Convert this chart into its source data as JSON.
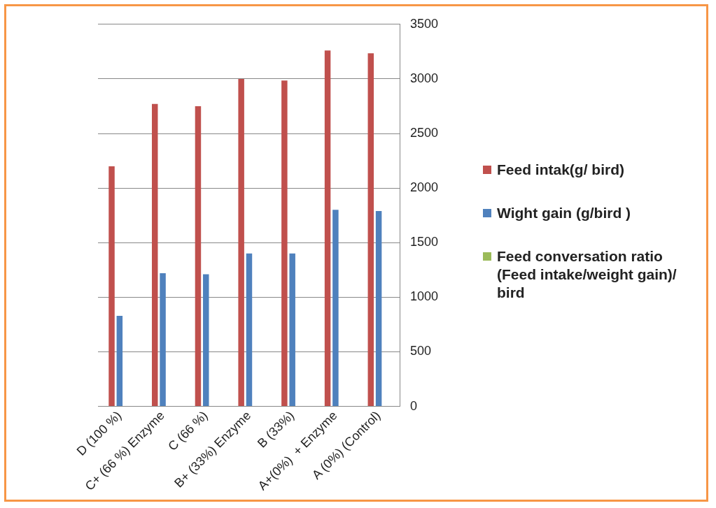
{
  "chart_data": {
    "type": "bar",
    "categories": [
      "D (100 %)",
      "C+ (66 %) Enzyme",
      "C (66 %)",
      "B+ (33%) Enzyme",
      "B (33%)",
      "A+(0%)  + Enzyme",
      "A (0%) (Control)"
    ],
    "series": [
      {
        "name": "Feed intak(g/ bird)",
        "color": "#c0504d",
        "values": [
          2200,
          2770,
          2750,
          3000,
          2985,
          3260,
          3235
        ]
      },
      {
        "name": "Wight gain  (g/bird )",
        "color": "#4f81bd",
        "values": [
          830,
          1220,
          1210,
          1400,
          1400,
          1800,
          1790
        ]
      },
      {
        "name": "Feed conversation ratio (Feed intake/weight gain)/ bird",
        "color": "#9bbb59",
        "values": [
          null,
          null,
          null,
          null,
          null,
          null,
          null
        ]
      }
    ],
    "ylim": [
      0,
      3500
    ],
    "yticks": [
      0,
      500,
      1000,
      1500,
      2000,
      2500,
      3000,
      3500
    ],
    "grid": "y",
    "legend": "right"
  }
}
